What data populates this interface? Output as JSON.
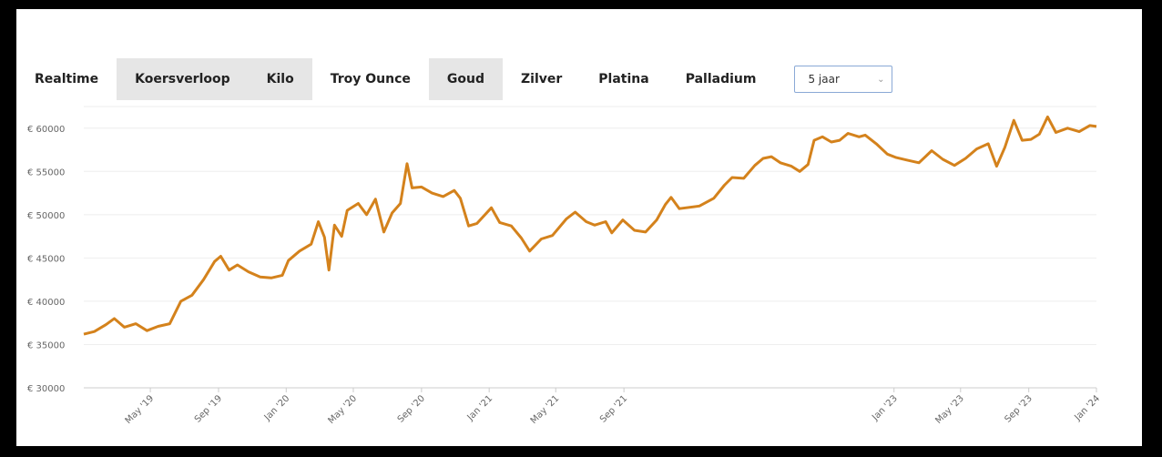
{
  "tabs": [
    {
      "label": "Realtime",
      "selected": false
    },
    {
      "label": "Koersverloop",
      "selected": true
    },
    {
      "label": "Kilo",
      "selected": true
    },
    {
      "label": "Troy Ounce",
      "selected": false
    },
    {
      "label": "Goud",
      "selected": true
    },
    {
      "label": "Zilver",
      "selected": false
    },
    {
      "label": "Platina",
      "selected": false
    },
    {
      "label": "Palladium",
      "selected": false
    }
  ],
  "period_select": {
    "value": "5 jaar",
    "icon": "chevron-down-icon"
  },
  "chart_data": {
    "type": "line",
    "title": "",
    "xlabel": "",
    "ylabel": "",
    "ylim": [
      30000,
      60000
    ],
    "yticks": [
      {
        "value": 30000,
        "label": "€ 30000"
      },
      {
        "value": 35000,
        "label": "€ 35000"
      },
      {
        "value": 40000,
        "label": "€ 40000"
      },
      {
        "value": 45000,
        "label": "€ 45000"
      },
      {
        "value": 50000,
        "label": "€ 50000"
      },
      {
        "value": 55000,
        "label": "€ 55000"
      },
      {
        "value": 60000,
        "label": "€ 60000"
      }
    ],
    "xlim": [
      "2019-01-01",
      "2024-01-01"
    ],
    "xticks": [
      {
        "date": "2019-05-01",
        "label": "May '19"
      },
      {
        "date": "2019-09-01",
        "label": "Sep '19"
      },
      {
        "date": "2020-01-01",
        "label": "Jan '20"
      },
      {
        "date": "2020-05-01",
        "label": "May '20"
      },
      {
        "date": "2020-09-01",
        "label": "Sep '20"
      },
      {
        "date": "2021-01-01",
        "label": "Jan '21"
      },
      {
        "date": "2021-05-01",
        "label": "May '21"
      },
      {
        "date": "2021-09-01",
        "label": "Sep '21"
      },
      {
        "date": "2023-01-01",
        "label": "Jan '23"
      },
      {
        "date": "2023-05-01",
        "label": "May '23"
      },
      {
        "date": "2023-09-01",
        "label": "Sep '23"
      },
      {
        "date": "2024-01-01",
        "label": "Jan '24"
      }
    ],
    "grid": true,
    "series": [
      {
        "color": "#d4821c",
        "points": [
          [
            "2019-01-01",
            36200
          ],
          [
            "2019-01-20",
            36500
          ],
          [
            "2019-02-10",
            37300
          ],
          [
            "2019-02-25",
            38000
          ],
          [
            "2019-03-15",
            37000
          ],
          [
            "2019-04-05",
            37400
          ],
          [
            "2019-04-25",
            36600
          ],
          [
            "2019-05-15",
            37100
          ],
          [
            "2019-06-05",
            37400
          ],
          [
            "2019-06-25",
            40000
          ],
          [
            "2019-07-15",
            40700
          ],
          [
            "2019-08-05",
            42500
          ],
          [
            "2019-08-25",
            44600
          ],
          [
            "2019-09-05",
            45200
          ],
          [
            "2019-09-20",
            43600
          ],
          [
            "2019-10-05",
            44200
          ],
          [
            "2019-10-25",
            43400
          ],
          [
            "2019-11-15",
            42800
          ],
          [
            "2019-12-05",
            42700
          ],
          [
            "2019-12-25",
            43000
          ],
          [
            "2020-01-05",
            44700
          ],
          [
            "2020-01-25",
            45800
          ],
          [
            "2020-02-15",
            46600
          ],
          [
            "2020-02-28",
            49200
          ],
          [
            "2020-03-10",
            47400
          ],
          [
            "2020-03-18",
            43600
          ],
          [
            "2020-03-28",
            48800
          ],
          [
            "2020-04-10",
            47500
          ],
          [
            "2020-04-20",
            50500
          ],
          [
            "2020-05-10",
            51300
          ],
          [
            "2020-05-25",
            50000
          ],
          [
            "2020-06-10",
            51800
          ],
          [
            "2020-06-25",
            48000
          ],
          [
            "2020-07-10",
            50200
          ],
          [
            "2020-07-25",
            51300
          ],
          [
            "2020-08-06",
            55900
          ],
          [
            "2020-08-15",
            53100
          ],
          [
            "2020-09-01",
            53200
          ],
          [
            "2020-09-20",
            52500
          ],
          [
            "2020-10-10",
            52100
          ],
          [
            "2020-10-30",
            52800
          ],
          [
            "2020-11-10",
            51900
          ],
          [
            "2020-11-25",
            48700
          ],
          [
            "2020-12-10",
            49000
          ],
          [
            "2021-01-05",
            50800
          ],
          [
            "2021-01-20",
            49100
          ],
          [
            "2021-02-10",
            48700
          ],
          [
            "2021-02-28",
            47300
          ],
          [
            "2021-03-15",
            45800
          ],
          [
            "2021-04-05",
            47200
          ],
          [
            "2021-04-25",
            47600
          ],
          [
            "2021-05-20",
            49500
          ],
          [
            "2021-06-05",
            50300
          ],
          [
            "2021-06-25",
            49200
          ],
          [
            "2021-07-10",
            48800
          ],
          [
            "2021-07-30",
            49200
          ],
          [
            "2021-08-10",
            47900
          ],
          [
            "2021-08-30",
            49400
          ],
          [
            "2021-09-20",
            48200
          ],
          [
            "2021-10-10",
            48000
          ],
          [
            "2021-10-30",
            49400
          ],
          [
            "2021-11-15",
            51200
          ],
          [
            "2021-11-25",
            52000
          ],
          [
            "2021-12-10",
            50700
          ],
          [
            "2022-01-15",
            51000
          ],
          [
            "2022-02-10",
            51900
          ],
          [
            "2022-03-01",
            53400
          ],
          [
            "2022-03-15",
            54300
          ],
          [
            "2022-04-05",
            54200
          ],
          [
            "2022-04-25",
            55700
          ],
          [
            "2022-05-10",
            56500
          ],
          [
            "2022-05-25",
            56700
          ],
          [
            "2022-06-10",
            56000
          ],
          [
            "2022-06-30",
            55600
          ],
          [
            "2022-07-15",
            55000
          ],
          [
            "2022-07-30",
            55800
          ],
          [
            "2022-08-10",
            58600
          ],
          [
            "2022-08-25",
            59000
          ],
          [
            "2022-09-10",
            58400
          ],
          [
            "2022-09-25",
            58600
          ],
          [
            "2022-10-10",
            59400
          ],
          [
            "2022-10-30",
            59000
          ],
          [
            "2022-11-10",
            59200
          ],
          [
            "2022-11-30",
            58200
          ],
          [
            "2022-12-20",
            57000
          ],
          [
            "2023-01-05",
            56600
          ],
          [
            "2023-01-25",
            56300
          ],
          [
            "2023-02-15",
            56000
          ],
          [
            "2023-03-10",
            57400
          ],
          [
            "2023-03-30",
            56400
          ],
          [
            "2023-04-20",
            55700
          ],
          [
            "2023-05-10",
            56500
          ],
          [
            "2023-05-30",
            57600
          ],
          [
            "2023-06-20",
            58200
          ],
          [
            "2023-07-05",
            55600
          ],
          [
            "2023-07-20",
            57800
          ],
          [
            "2023-08-05",
            60900
          ],
          [
            "2023-08-20",
            58600
          ],
          [
            "2023-09-05",
            58700
          ],
          [
            "2023-09-20",
            59300
          ],
          [
            "2023-10-05",
            61300
          ],
          [
            "2023-10-20",
            59500
          ],
          [
            "2023-11-10",
            60000
          ],
          [
            "2023-12-01",
            59600
          ],
          [
            "2023-12-20",
            60300
          ],
          [
            "2024-01-01",
            60200
          ]
        ]
      }
    ]
  }
}
